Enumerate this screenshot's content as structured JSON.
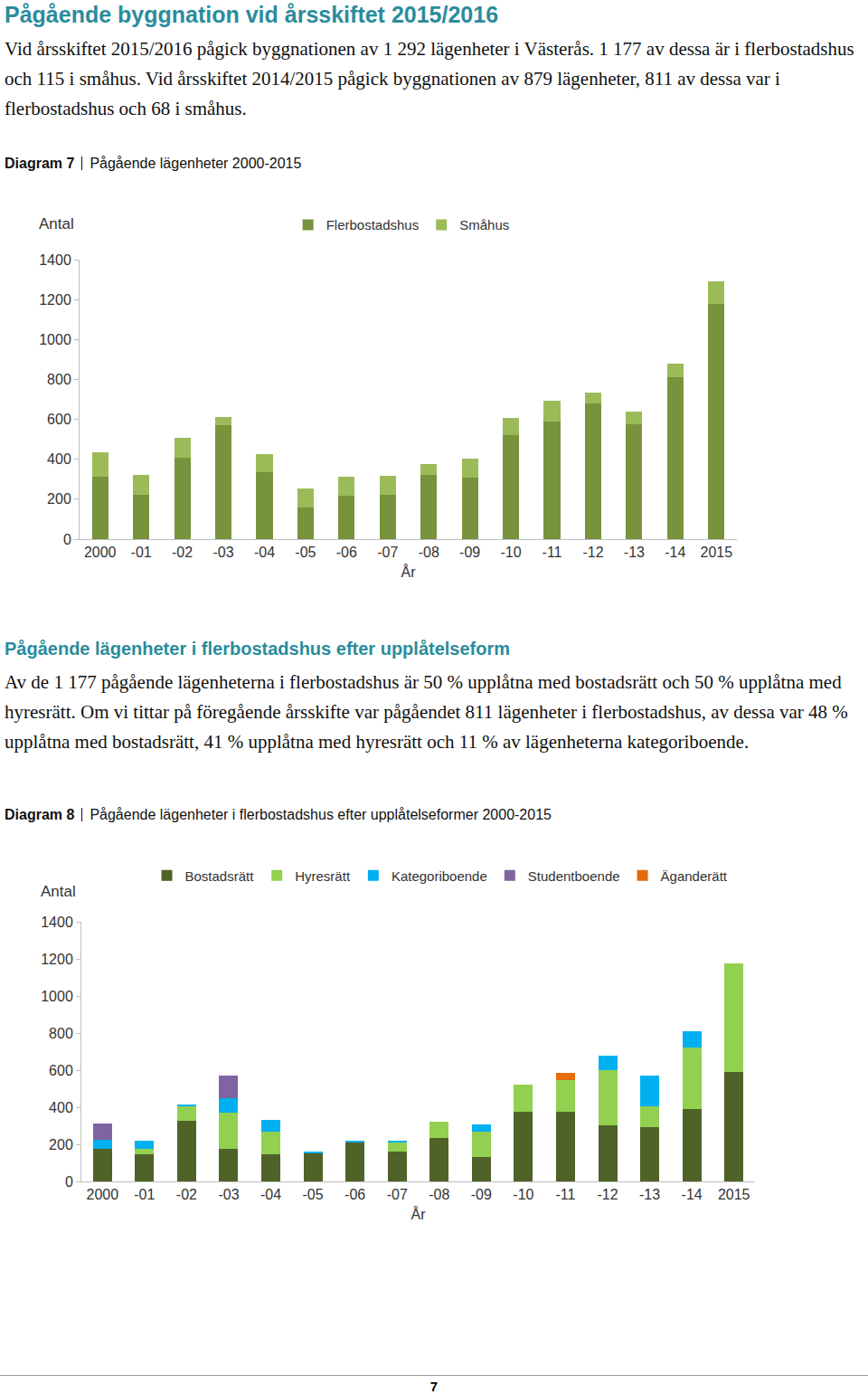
{
  "section1": {
    "heading": "Pågående byggnation vid årsskiftet 2015/2016",
    "text": "Vid årsskiftet 2015/2016 pågick byggnationen av 1 292 lägenheter i Västerås. 1 177 av dessa är i flerbostadshus och 115 i småhus. Vid årsskiftet 2014/2015 pågick byggnationen av 879 lägenheter, 811 av dessa var i flerbostadshus och 68 i småhus."
  },
  "figure1": {
    "label": "Diagram 7"
  },
  "section2": {
    "heading": "Pågående lägenheter i flerbostadshus efter upplåtelseform",
    "text": "Av de 1 177 pågående lägenheterna i flerbostadshus är 50 % upplåtna med bostadsrätt och 50 % upplåtna med hyresrätt. Om vi tittar på föregående årsskifte var pågåendet 811 lägenheter i flerbostadshus, av dessa var 48 % upplåtna med bostadsrätt, 41 % upplåtna med hyresrätt och 11 % av lägenheterna kategoriboende."
  },
  "figure2": {
    "label": "Diagram 8"
  },
  "page_number": "7",
  "chart_data": [
    {
      "type": "bar",
      "stacked": true,
      "title": "Pågående lägenheter 2000-2015",
      "x_label": "År",
      "y_label": "Antal",
      "categories": [
        "2000",
        "-01",
        "-02",
        "-03",
        "-04",
        "-05",
        "-06",
        "-07",
        "-08",
        "-09",
        "-10",
        "-11",
        "-12",
        "-13",
        "-14",
        "2015"
      ],
      "series": [
        {
          "name": "Flerbostadshus",
          "color": "#77933c",
          "values": [
            312,
            223,
            410,
            571,
            334,
            160,
            218,
            223,
            321,
            308,
            522,
            589,
            678,
            575,
            811,
            1177
          ]
        },
        {
          "name": "Småhus",
          "color": "#9bbb59",
          "values": [
            121,
            98,
            98,
            40,
            90,
            94,
            94,
            94,
            54,
            93,
            84,
            102,
            58,
            63,
            68,
            115
          ]
        }
      ],
      "ylim": [
        0,
        1400
      ],
      "yticks": [
        0,
        200,
        400,
        600,
        800,
        1000,
        1200,
        1400
      ],
      "grid": false,
      "legend": "top"
    },
    {
      "type": "bar",
      "stacked": true,
      "title": "Pågående lägenheter i flerbostadshus efter upplåtelseformer 2000-2015",
      "x_label": "År",
      "y_label": "Antal",
      "categories": [
        "2000",
        "-01",
        "-02",
        "-03",
        "-04",
        "-05",
        "-06",
        "-07",
        "-08",
        "-09",
        "-10",
        "-11",
        "-12",
        "-13",
        "-14",
        "2015"
      ],
      "series": [
        {
          "name": "Bostadsrätt",
          "color": "#4f6228",
          "values": [
            178,
            144,
            327,
            178,
            144,
            150,
            212,
            159,
            236,
            130,
            375,
            375,
            303,
            293,
            389,
            589
          ]
        },
        {
          "name": "Hyresrätt",
          "color": "#92d050",
          "values": [
            0,
            34,
            77,
            192,
            125,
            0,
            0,
            53,
            86,
            139,
            149,
            169,
            298,
            111,
            333,
            588
          ]
        },
        {
          "name": "Kategoriboende",
          "color": "#00b0f0",
          "values": [
            48,
            43,
            10,
            77,
            63,
            10,
            5,
            5,
            0,
            39,
            0,
            0,
            77,
            168,
            89,
            0
          ]
        },
        {
          "name": "Studentboende",
          "color": "#8064a2",
          "values": [
            87,
            0,
            0,
            125,
            0,
            0,
            0,
            0,
            0,
            0,
            0,
            0,
            0,
            0,
            0,
            0
          ]
        },
        {
          "name": "Äganderätt",
          "color": "#e46c0a",
          "values": [
            0,
            0,
            0,
            0,
            0,
            0,
            0,
            0,
            0,
            0,
            0,
            43,
            0,
            0,
            0,
            0
          ]
        }
      ],
      "ylim": [
        0,
        1400
      ],
      "yticks": [
        0,
        200,
        400,
        600,
        800,
        1000,
        1200,
        1400
      ],
      "grid": false,
      "legend": "top"
    }
  ]
}
